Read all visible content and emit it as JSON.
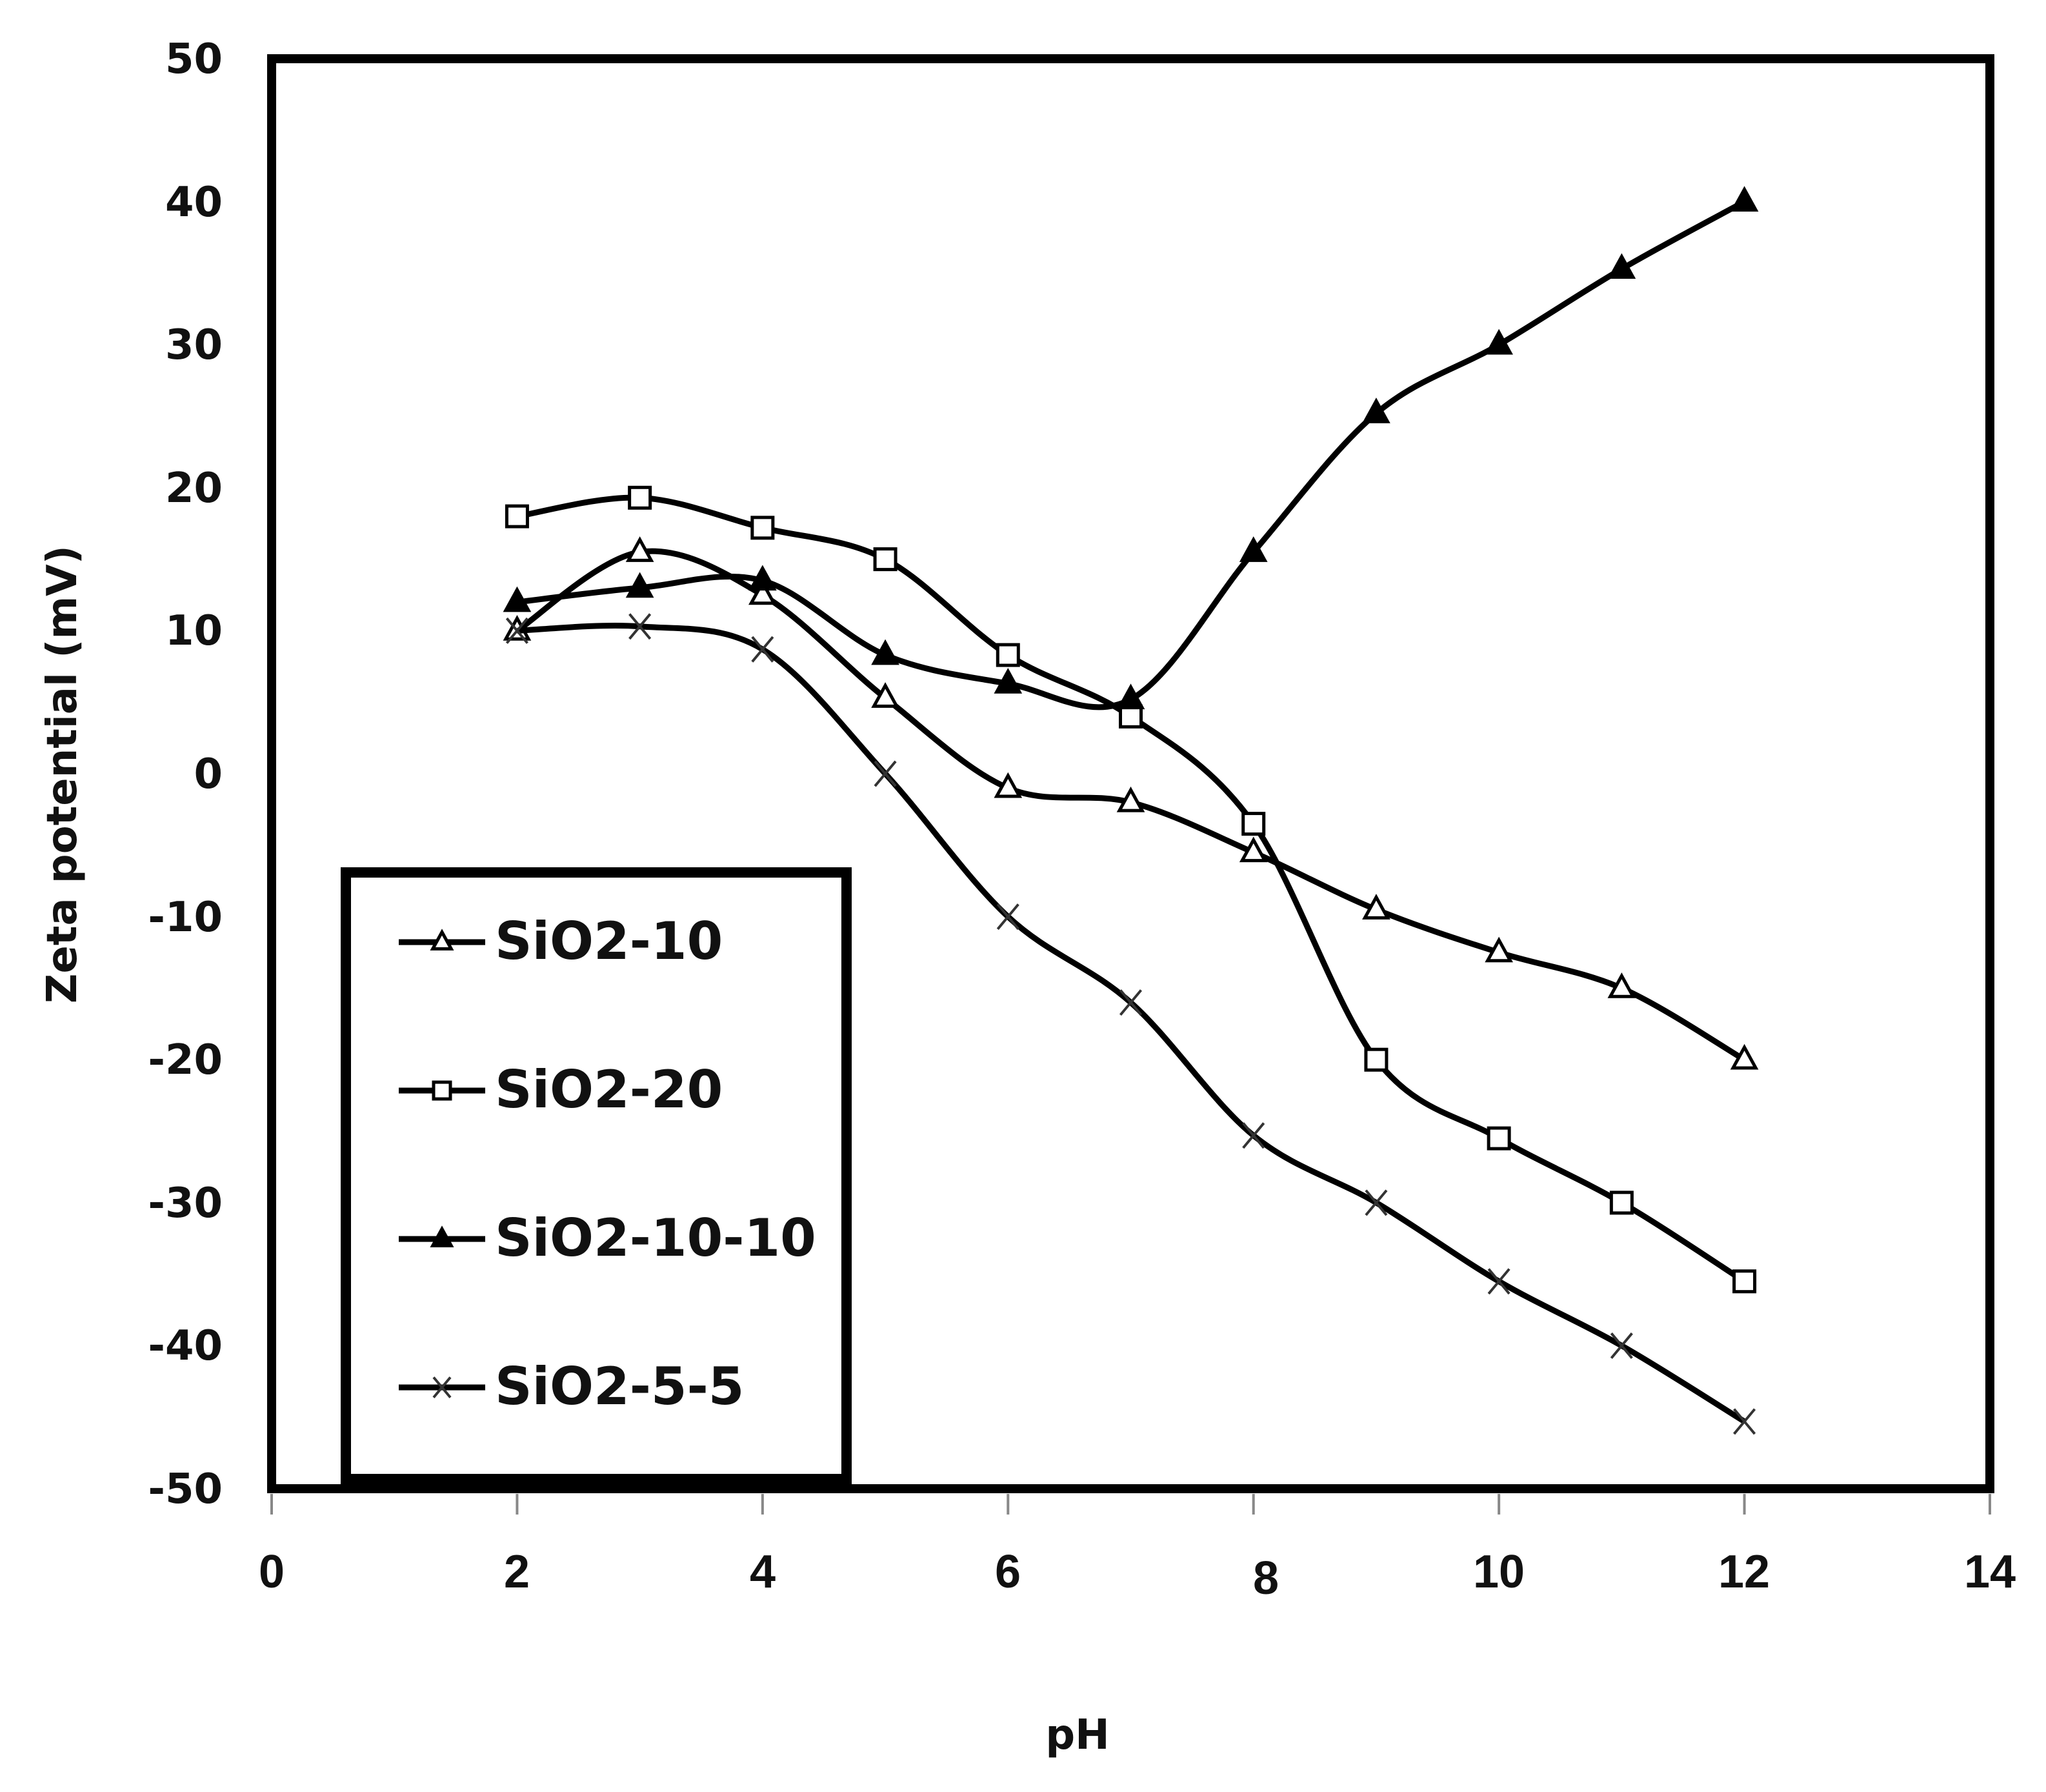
{
  "chart_data": {
    "type": "line",
    "title": "",
    "xlabel": "pH",
    "ylabel": "Zeta potential (mV)",
    "xlim": [
      0,
      14
    ],
    "ylim": [
      -50,
      50
    ],
    "x_ticks": [
      0,
      2,
      4,
      6,
      8,
      10,
      12,
      14
    ],
    "y_ticks": [
      50,
      40,
      30,
      20,
      10,
      0,
      -10,
      -20,
      -30,
      -40,
      -50
    ],
    "grid": false,
    "legend_position": "lower-left inside",
    "x": [
      2,
      3,
      4,
      5,
      6,
      7,
      8,
      9,
      10,
      11,
      12
    ],
    "series": [
      {
        "name": "SiO2-10",
        "marker": "open-triangle",
        "values": [
          10,
          15.5,
          12.5,
          5.3,
          -1,
          -2,
          -5.5,
          -9.5,
          -12.5,
          -15,
          -20
        ]
      },
      {
        "name": "SiO2-20",
        "marker": "open-square",
        "values": [
          18,
          19.3,
          17.2,
          15,
          8.3,
          4,
          -3.5,
          -20,
          -25.5,
          -30,
          -35.5
        ]
      },
      {
        "name": "SiO2-10-10",
        "marker": "filled-triangle",
        "values": [
          12,
          13,
          13.5,
          8.3,
          6.3,
          5.2,
          15.5,
          25.2,
          30,
          35.3,
          40
        ]
      },
      {
        "name": "SiO2-5-5",
        "marker": "x",
        "values": [
          10,
          10.3,
          8.7,
          0,
          -10,
          -16,
          -25.3,
          -30,
          -35.5,
          -40,
          -45.3
        ]
      }
    ]
  },
  "axes": {
    "y_tick_labels": [
      "50",
      "40",
      "30",
      "20",
      "10",
      "0",
      "-10",
      "-20",
      "-30",
      "-40",
      "-50"
    ],
    "x_tick_labels": [
      "0",
      "2",
      "4",
      "6",
      "8",
      "10",
      "12",
      "14"
    ],
    "x_title": "pH",
    "y_title": "Zeta potential (mV)"
  },
  "legend": {
    "items": [
      "SiO2-10",
      "SiO2-20",
      "SiO2-10-10",
      "SiO2-5-5"
    ]
  },
  "colors": {
    "line": "#000000",
    "background": "#ffffff"
  }
}
